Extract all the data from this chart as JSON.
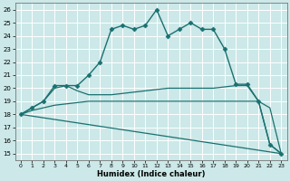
{
  "xlabel": "Humidex (Indice chaleur)",
  "bg_color": "#cce8e8",
  "grid_color": "#ffffff",
  "line_color": "#1a7070",
  "xlim": [
    -0.5,
    23.5
  ],
  "ylim": [
    14.5,
    26.5
  ],
  "xticks": [
    0,
    1,
    2,
    3,
    4,
    5,
    6,
    7,
    8,
    9,
    10,
    11,
    12,
    13,
    14,
    15,
    16,
    17,
    18,
    19,
    20,
    21,
    22,
    23
  ],
  "yticks": [
    15,
    16,
    17,
    18,
    19,
    20,
    21,
    22,
    23,
    24,
    25,
    26
  ],
  "series": [
    {
      "x": [
        0,
        1,
        2,
        3,
        4,
        5,
        6,
        7,
        8,
        9,
        10,
        11,
        12,
        13,
        14,
        15,
        16,
        17,
        18,
        19,
        20,
        21,
        22,
        23
      ],
      "y": [
        18,
        18.5,
        19,
        20.2,
        20.2,
        20.2,
        21,
        22,
        24.5,
        24.8,
        24.5,
        24.8,
        26,
        24,
        24.5,
        25,
        24.5,
        24.5,
        23,
        20.3,
        20.3,
        19,
        15.7,
        15
      ],
      "marker": "D",
      "marker_size": 2.5,
      "linewidth": 1.0
    },
    {
      "x": [
        0,
        1,
        2,
        3,
        4,
        5,
        6,
        7,
        8,
        9,
        10,
        11,
        12,
        13,
        14,
        15,
        16,
        17,
        18,
        19,
        20,
        21,
        22,
        23
      ],
      "y": [
        18,
        18.5,
        19,
        20,
        20.2,
        19.8,
        19.5,
        19.5,
        19.5,
        19.6,
        19.7,
        19.8,
        19.9,
        20.0,
        20.0,
        20.0,
        20.0,
        20.0,
        20.1,
        20.2,
        20.2,
        19.0,
        15.7,
        15
      ],
      "marker": null,
      "linewidth": 0.9
    },
    {
      "x": [
        0,
        1,
        2,
        3,
        4,
        5,
        6,
        7,
        8,
        9,
        10,
        11,
        12,
        13,
        14,
        15,
        16,
        17,
        18,
        19,
        20,
        21,
        22,
        23
      ],
      "y": [
        18.0,
        18.3,
        18.5,
        18.7,
        18.8,
        18.9,
        19.0,
        19.0,
        19.0,
        19.0,
        19.0,
        19.0,
        19.0,
        19.0,
        19.0,
        19.0,
        19.0,
        19.0,
        19.0,
        19.0,
        19.0,
        19.0,
        18.5,
        15.0
      ],
      "marker": null,
      "linewidth": 0.9
    },
    {
      "x": [
        0,
        23
      ],
      "y": [
        18.0,
        15.0
      ],
      "marker": null,
      "linewidth": 0.9
    }
  ]
}
